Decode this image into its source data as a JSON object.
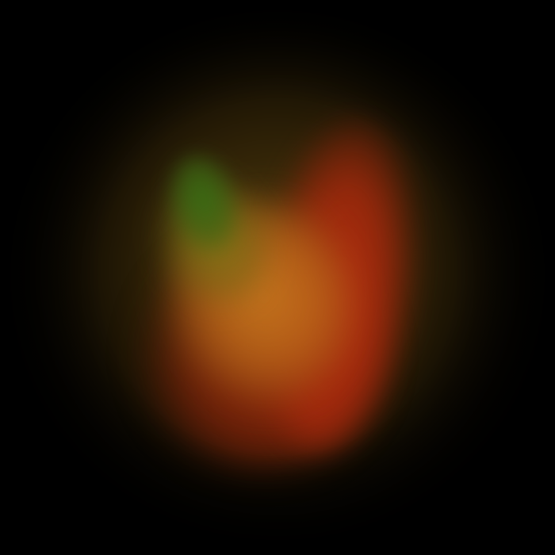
{
  "colors": {
    "background": "#000000",
    "halo": "#5f460f",
    "red_lobe": "#be2d0f",
    "gold_core": "#c8781e",
    "olive": "#827814",
    "green_spot": "#376e14"
  }
}
